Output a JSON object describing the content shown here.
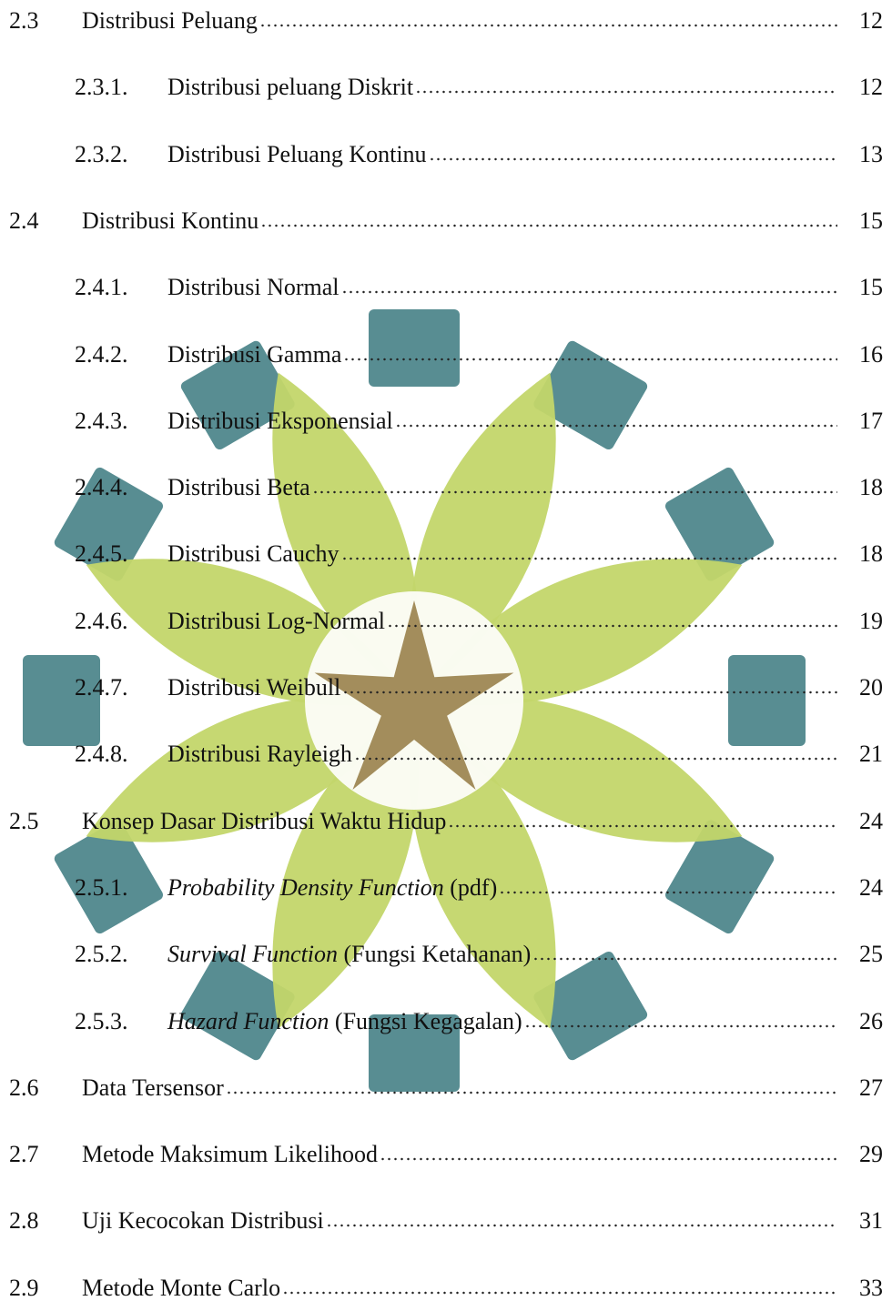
{
  "entries": [
    {
      "number": "2.3",
      "title": "Distribusi Peluang",
      "page": "12",
      "level": 1
    },
    {
      "number": "2.3.1.",
      "title": "Distribusi peluang Diskrit",
      "page": "12",
      "level": 2
    },
    {
      "number": "2.3.2.",
      "title": "Distribusi Peluang Kontinu",
      "page": "13",
      "level": 2
    },
    {
      "number": "2.4",
      "title": "Distribusi Kontinu",
      "page": "15",
      "level": 1
    },
    {
      "number": "2.4.1.",
      "title": "Distribusi Normal",
      "page": "15",
      "level": 2
    },
    {
      "number": "2.4.2.",
      "title": "Distribusi Gamma",
      "page": "16",
      "level": 2
    },
    {
      "number": "2.4.3.",
      "title": "Distribusi Eksponensial",
      "page": "17",
      "level": 2
    },
    {
      "number": "2.4.4.",
      "title": "Distribusi Beta",
      "page": "18",
      "level": 2
    },
    {
      "number": "2.4.5.",
      "title": "Distribusi Cauchy",
      "page": "18",
      "level": 2
    },
    {
      "number": "2.4.6.",
      "title": "Distribusi Log-Normal",
      "page": "19",
      "level": 2
    },
    {
      "number": "2.4.7.",
      "title": "Distribusi Weibull",
      "page": "20",
      "level": 2
    },
    {
      "number": "2.4.8.",
      "title": "Distribusi Rayleigh",
      "page": "21",
      "level": 2
    },
    {
      "number": "2.5",
      "title": "Konsep Dasar Distribusi Waktu Hidup",
      "page": "24",
      "level": 1
    },
    {
      "number": "2.5.1.",
      "title_em": "Probability Density Function",
      "title": " (pdf)",
      "page": "24",
      "level": 2
    },
    {
      "number": "2.5.2.",
      "title_em": "Survival Function",
      "title": " (Fungsi Ketahanan)",
      "page": "25",
      "level": 2
    },
    {
      "number": "2.5.3.",
      "title_em": "Hazard Function",
      "title": " (Fungsi Kegagalan)",
      "page": "26",
      "level": 2
    },
    {
      "number": "2.6",
      "title": "Data Tersensor",
      "page": "27",
      "level": 1
    },
    {
      "number": "2.7",
      "title": "Metode Maksimum Likelihood",
      "page": "29",
      "level": 1
    },
    {
      "number": "2.8",
      "title": "Uji Kecocokan Distribusi",
      "page": "31",
      "level": 1
    },
    {
      "number": "2.9",
      "title": "Metode Monte Carlo",
      "page": "33",
      "level": 1
    }
  ]
}
